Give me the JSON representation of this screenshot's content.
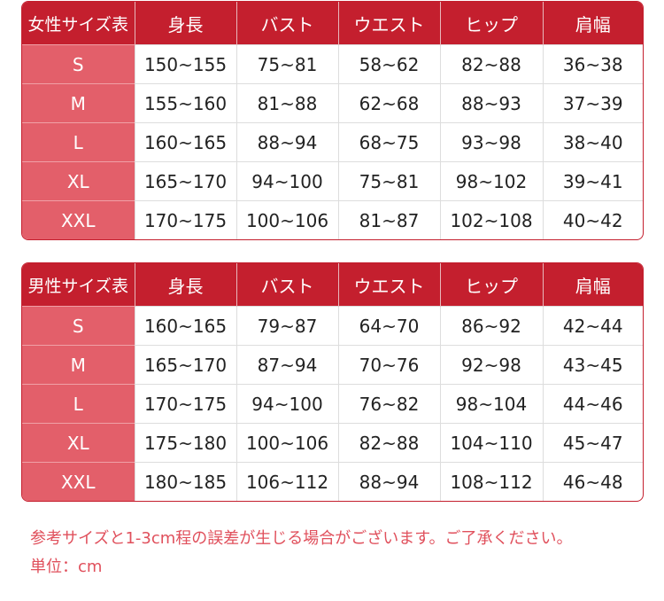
{
  "tables": [
    {
      "headers": [
        "女性サイズ表",
        "身長",
        "バスト",
        "ウエスト",
        "ヒップ",
        "肩幅"
      ],
      "rows": [
        [
          "S",
          "150~155",
          "75~81",
          "58~62",
          "82~88",
          "36~38"
        ],
        [
          "M",
          "155~160",
          "81~88",
          "62~68",
          "88~93",
          "37~39"
        ],
        [
          "L",
          "160~165",
          "88~94",
          "68~75",
          "93~98",
          "38~40"
        ],
        [
          "XL",
          "165~170",
          "94~100",
          "75~81",
          "98~102",
          "39~41"
        ],
        [
          "XXL",
          "170~175",
          "100~106",
          "81~87",
          "102~108",
          "40~42"
        ]
      ]
    },
    {
      "headers": [
        "男性サイズ表",
        "身長",
        "バスト",
        "ウエスト",
        "ヒップ",
        "肩幅"
      ],
      "rows": [
        [
          "S",
          "160~165",
          "79~87",
          "64~70",
          "86~92",
          "42~44"
        ],
        [
          "M",
          "165~170",
          "87~94",
          "70~76",
          "92~98",
          "43~45"
        ],
        [
          "L",
          "170~175",
          "94~100",
          "76~82",
          "98~104",
          "44~46"
        ],
        [
          "XL",
          "175~180",
          "100~106",
          "82~88",
          "104~110",
          "45~47"
        ],
        [
          "XXL",
          "180~185",
          "106~112",
          "88~94",
          "108~112",
          "46~48"
        ]
      ]
    }
  ],
  "notes": {
    "disclaimer": "参考サイズと1-3cm程の誤差が生じる場合がございます。ご了承ください。",
    "unit": "単位：cm"
  },
  "colors": {
    "header": "#c41f2e",
    "size_column": "#e35f6a",
    "note_text": "#e0505c"
  }
}
